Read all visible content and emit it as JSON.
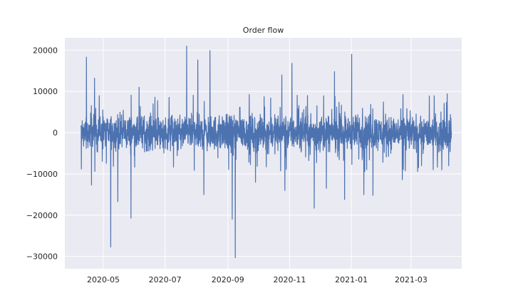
{
  "chart_data": {
    "type": "line",
    "title": "Order flow",
    "xlabel": "",
    "ylabel": "",
    "grid": true,
    "background": "#eaeaf2",
    "grid_color": "#ffffff",
    "line_color": "#4c72b0",
    "x_range": [
      "2020-03-24",
      "2021-04-20"
    ],
    "ylim": [
      -33000,
      23000
    ],
    "x_ticks": [
      {
        "date": "2020-05-01",
        "label": "2020-05"
      },
      {
        "date": "2020-07-01",
        "label": "2020-07"
      },
      {
        "date": "2020-09-01",
        "label": "2020-09"
      },
      {
        "date": "2020-11-01",
        "label": "2020-11"
      },
      {
        "date": "2021-01-01",
        "label": "2021-01"
      },
      {
        "date": "2021-03-01",
        "label": "2021-03"
      }
    ],
    "y_ticks": [
      {
        "value": 20000,
        "label": "20000"
      },
      {
        "value": 10000,
        "label": "10000"
      },
      {
        "value": 0,
        "label": "0"
      },
      {
        "value": -10000,
        "label": "−10000"
      },
      {
        "value": -20000,
        "label": "−20000"
      },
      {
        "value": -30000,
        "label": "−30000"
      }
    ],
    "series": [
      {
        "x_start": "2020-04-09",
        "x_end": "2021-04-10",
        "typical_band": [
          -4500,
          4500
        ],
        "spikes": [
          {
            "date": "2020-04-09",
            "value": -8800
          },
          {
            "date": "2020-04-14",
            "value": 18300
          },
          {
            "date": "2020-04-19",
            "value": -12700
          },
          {
            "date": "2020-04-22",
            "value": 13200
          },
          {
            "date": "2020-05-08",
            "value": -27700
          },
          {
            "date": "2020-05-15",
            "value": -16700
          },
          {
            "date": "2020-05-28",
            "value": -20700
          },
          {
            "date": "2020-06-05",
            "value": 11000
          },
          {
            "date": "2020-07-22",
            "value": 21000
          },
          {
            "date": "2020-08-02",
            "value": 17600
          },
          {
            "date": "2020-08-08",
            "value": -15000
          },
          {
            "date": "2020-08-14",
            "value": 19900
          },
          {
            "date": "2020-09-05",
            "value": -21000
          },
          {
            "date": "2020-09-08",
            "value": -30300
          },
          {
            "date": "2020-09-28",
            "value": -12000
          },
          {
            "date": "2020-10-24",
            "value": 14000
          },
          {
            "date": "2020-10-27",
            "value": -14000
          },
          {
            "date": "2020-11-03",
            "value": 16800
          },
          {
            "date": "2020-11-25",
            "value": -18300
          },
          {
            "date": "2020-12-07",
            "value": -13500
          },
          {
            "date": "2020-12-15",
            "value": 14800
          },
          {
            "date": "2020-12-25",
            "value": -16200
          },
          {
            "date": "2021-01-01",
            "value": 19000
          },
          {
            "date": "2021-01-13",
            "value": -15000
          },
          {
            "date": "2021-01-22",
            "value": -15200
          },
          {
            "date": "2021-02-20",
            "value": -11400
          },
          {
            "date": "2021-03-31",
            "value": -9000
          }
        ]
      }
    ]
  }
}
